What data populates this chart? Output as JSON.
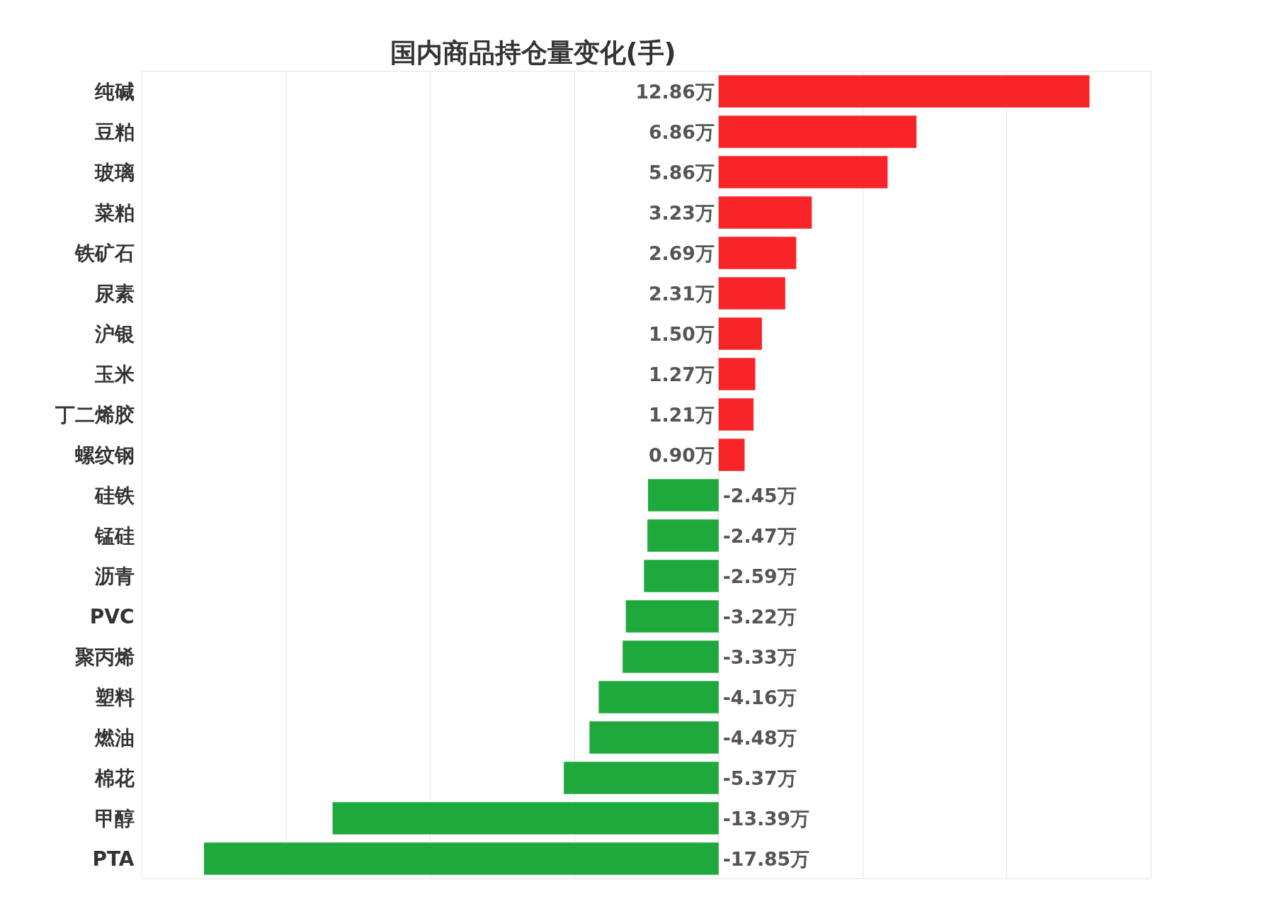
{
  "chart_data": {
    "type": "bar",
    "orientation": "horizontal",
    "title": "国内商品持仓量变化(手)",
    "categories": [
      "纯碱",
      "豆粕",
      "玻璃",
      "菜粕",
      "铁矿石",
      "尿素",
      "沪银",
      "玉米",
      "丁二烯胶",
      "螺纹钢",
      "硅铁",
      "锰硅",
      "沥青",
      "PVC",
      "聚丙烯",
      "塑料",
      "燃油",
      "棉花",
      "甲醇",
      "PTA"
    ],
    "values": [
      12.86,
      6.86,
      5.86,
      3.23,
      2.69,
      2.31,
      1.5,
      1.27,
      1.21,
      0.9,
      -2.45,
      -2.47,
      -2.59,
      -3.22,
      -3.33,
      -4.16,
      -4.48,
      -5.37,
      -13.39,
      -17.85
    ],
    "value_labels": [
      "12.86万",
      "6.86万",
      "5.86万",
      "3.23万",
      "2.69万",
      "2.31万",
      "1.50万",
      "1.27万",
      "1.21万",
      "0.90万",
      "-2.45万",
      "-2.47万",
      "-2.59万",
      "-3.22万",
      "-3.33万",
      "-4.16万",
      "-4.48万",
      "-5.37万",
      "-13.39万",
      "-17.85万"
    ],
    "colors": [
      "#f92428",
      "#f92428",
      "#f92428",
      "#f92428",
      "#f92428",
      "#f92428",
      "#f92428",
      "#f92428",
      "#f92428",
      "#f92428",
      "#1fa83b",
      "#1fa83b",
      "#1fa83b",
      "#1fa83b",
      "#1fa83b",
      "#1fa83b",
      "#1fa83b",
      "#1fa83b",
      "#1fa83b",
      "#1fa83b"
    ],
    "xlim": [
      -20,
      15
    ],
    "xticks": [
      {
        "value": -15,
        "label": null
      },
      {
        "value": -10,
        "label": null
      },
      {
        "value": -5,
        "label": null
      },
      {
        "value": 0,
        "label": null
      },
      {
        "value": 5,
        "label": null
      },
      {
        "value": 10,
        "label": null
      }
    ],
    "grid": "x",
    "tick_labels": "y"
  }
}
